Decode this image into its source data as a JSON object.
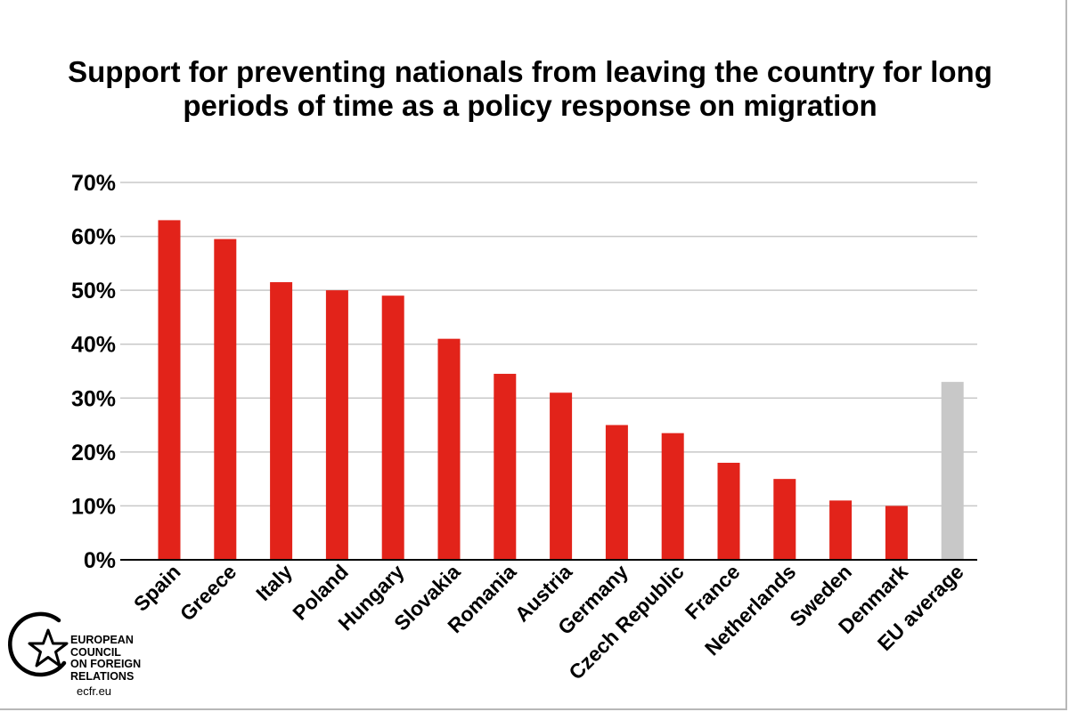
{
  "chart_data": {
    "type": "bar",
    "title": "Support for preventing nationals from leaving the country for long periods of time as a policy response on migration",
    "categories": [
      "Spain",
      "Greece",
      "Italy",
      "Poland",
      "Hungary",
      "Slovakia",
      "Romania",
      "Austria",
      "Germany",
      "Czech Republic",
      "France",
      "Netherlands",
      "Sweden",
      "Denmark",
      "EU average"
    ],
    "values": [
      63,
      59.5,
      51.5,
      50,
      49,
      41,
      34.5,
      31,
      25,
      23.5,
      18,
      15,
      11,
      10,
      33
    ],
    "bar_colors": [
      "#e2231a",
      "#e2231a",
      "#e2231a",
      "#e2231a",
      "#e2231a",
      "#e2231a",
      "#e2231a",
      "#e2231a",
      "#e2231a",
      "#e2231a",
      "#e2231a",
      "#e2231a",
      "#e2231a",
      "#e2231a",
      "#c8c8c8"
    ],
    "ylim": [
      0,
      70
    ],
    "yticks": [
      0,
      10,
      20,
      30,
      40,
      50,
      60,
      70
    ],
    "ytick_labels": [
      "0%",
      "10%",
      "20%",
      "30%",
      "40%",
      "50%",
      "60%",
      "70%"
    ],
    "xlabel": "",
    "ylabel": "",
    "grid": true,
    "gridline_color": "#c8c8c8"
  },
  "logo": {
    "lines": [
      "EUROPEAN",
      "COUNCIL",
      "ON FOREIGN",
      "RELATIONS"
    ],
    "url": "ecfr.eu",
    "icon": "star-circle-icon"
  }
}
